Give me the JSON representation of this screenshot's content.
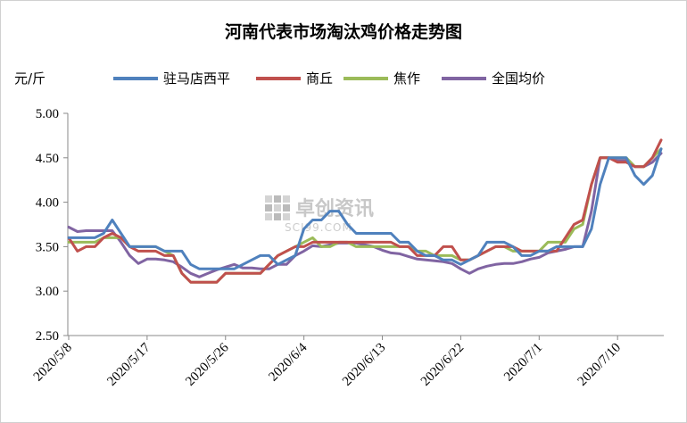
{
  "chart_data": {
    "type": "line",
    "title": "河南代表市场淘汰鸡价格走势图",
    "unit_label": "元/斤",
    "ylim": [
      2.5,
      5.0
    ],
    "yticks": [
      "5.00",
      "4.50",
      "4.00",
      "3.50",
      "3.00",
      "2.50"
    ],
    "xticks": [
      "2020/5/8",
      "2020/5/17",
      "2020/5/26",
      "2020/6/4",
      "2020/6/13",
      "2020/6/22",
      "2020/7/1",
      "2020/7/10"
    ],
    "grid": false,
    "legend_position": "top",
    "watermark": {
      "line1": "卓创资讯",
      "line2": "SCI99.COM"
    },
    "series": [
      {
        "name": "驻马店西平",
        "color": "#4f81bd",
        "values": [
          3.6,
          3.6,
          3.6,
          3.6,
          3.65,
          3.8,
          3.65,
          3.5,
          3.5,
          3.5,
          3.5,
          3.45,
          3.45,
          3.45,
          3.3,
          3.25,
          3.25,
          3.25,
          3.25,
          3.25,
          3.3,
          3.35,
          3.4,
          3.4,
          3.3,
          3.35,
          3.4,
          3.7,
          3.8,
          3.8,
          3.9,
          3.9,
          3.75,
          3.65,
          3.65,
          3.65,
          3.65,
          3.65,
          3.55,
          3.55,
          3.45,
          3.4,
          3.4,
          3.35,
          3.35,
          3.3,
          3.35,
          3.4,
          3.55,
          3.55,
          3.55,
          3.5,
          3.4,
          3.4,
          3.45,
          3.45,
          3.5,
          3.5,
          3.5,
          3.5,
          3.7,
          4.2,
          4.5,
          4.5,
          4.5,
          4.3,
          4.2,
          4.3,
          4.6
        ]
      },
      {
        "name": "商丘",
        "color": "#c0504d",
        "values": [
          3.6,
          3.45,
          3.5,
          3.5,
          3.6,
          3.65,
          3.6,
          3.5,
          3.45,
          3.45,
          3.45,
          3.4,
          3.4,
          3.2,
          3.1,
          3.1,
          3.1,
          3.1,
          3.2,
          3.2,
          3.2,
          3.2,
          3.2,
          3.3,
          3.4,
          3.45,
          3.5,
          3.5,
          3.55,
          3.55,
          3.55,
          3.55,
          3.55,
          3.55,
          3.55,
          3.55,
          3.55,
          3.55,
          3.5,
          3.5,
          3.4,
          3.4,
          3.4,
          3.5,
          3.5,
          3.35,
          3.35,
          3.4,
          3.45,
          3.5,
          3.5,
          3.5,
          3.45,
          3.45,
          3.45,
          3.45,
          3.45,
          3.6,
          3.75,
          3.8,
          4.2,
          4.5,
          4.5,
          4.45,
          4.45,
          4.4,
          4.4,
          4.5,
          4.7
        ]
      },
      {
        "name": "焦作",
        "color": "#9bbb59",
        "values": [
          3.55,
          3.55,
          3.55,
          3.55,
          3.6,
          3.6,
          3.6,
          3.5,
          3.5,
          3.5,
          3.5,
          3.45,
          3.4,
          3.2,
          3.1,
          3.1,
          3.1,
          3.1,
          3.2,
          3.2,
          3.2,
          3.2,
          3.2,
          3.3,
          3.4,
          3.45,
          3.5,
          3.55,
          3.6,
          3.5,
          3.5,
          3.55,
          3.55,
          3.5,
          3.5,
          3.5,
          3.5,
          3.5,
          3.5,
          3.5,
          3.45,
          3.45,
          3.4,
          3.4,
          3.4,
          3.35,
          3.35,
          3.4,
          3.45,
          3.5,
          3.5,
          3.45,
          3.45,
          3.45,
          3.45,
          3.55,
          3.55,
          3.55,
          3.7,
          3.75,
          4.2,
          4.5,
          4.5,
          4.5,
          4.5,
          4.4,
          4.4,
          4.5,
          4.6
        ]
      },
      {
        "name": "全国均价",
        "color": "#8064a2",
        "values": [
          3.72,
          3.67,
          3.68,
          3.68,
          3.68,
          3.68,
          3.55,
          3.4,
          3.31,
          3.36,
          3.36,
          3.35,
          3.33,
          3.27,
          3.2,
          3.16,
          3.2,
          3.24,
          3.27,
          3.3,
          3.26,
          3.26,
          3.25,
          3.25,
          3.3,
          3.3,
          3.4,
          3.45,
          3.51,
          3.5,
          3.52,
          3.54,
          3.54,
          3.54,
          3.52,
          3.5,
          3.46,
          3.43,
          3.42,
          3.39,
          3.36,
          3.35,
          3.34,
          3.33,
          3.31,
          3.25,
          3.2,
          3.25,
          3.28,
          3.3,
          3.31,
          3.31,
          3.33,
          3.36,
          3.38,
          3.43,
          3.45,
          3.47,
          3.5,
          3.5,
          3.9,
          4.5,
          4.5,
          4.47,
          4.47,
          4.4,
          4.4,
          4.45,
          4.55
        ]
      }
    ]
  }
}
